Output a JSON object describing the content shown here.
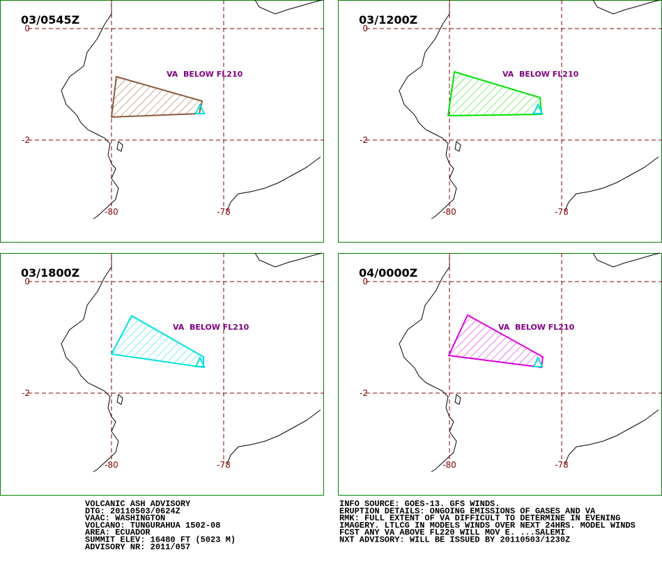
{
  "panels": [
    {
      "time": "03/0545Z",
      "va_label": "VA  BELOW FL210",
      "color": "#8b5a3c",
      "lat_labels": [
        "0",
        "-2"
      ],
      "lon_labels": [
        "-80",
        "-78"
      ]
    },
    {
      "time": "03/1200Z",
      "va_label": "VA  BELOW FL210",
      "color": "#00e000",
      "lat_labels": [
        "0",
        "-2"
      ],
      "lon_labels": [
        "-80",
        "-78"
      ]
    },
    {
      "time": "03/1800Z",
      "va_label": "VA  BELOW FL210",
      "color": "#00e0e0",
      "lat_labels": [
        "0",
        "-2"
      ],
      "lon_labels": [
        "-80",
        "-78"
      ]
    },
    {
      "time": "04/0000Z",
      "va_label": "VA  BELOW FL210",
      "color": "#e000e0",
      "lat_labels": [
        "0",
        "-2"
      ],
      "lon_labels": [
        "-80",
        "-78"
      ]
    }
  ],
  "advisory": {
    "left": [
      "VOLCANIC ASH ADVISORY",
      "DTG: 20110503/0624Z",
      "VAAC: WASHINGTON",
      "VOLCANO: TUNGURAHUA 1502-08",
      "AREA: ECUADOR",
      "SUMMIT ELEV: 16480 FT (5023 M)",
      "ADVISORY NR: 2011/057"
    ],
    "right": [
      "INFO SOURCE: GOES-13. GFS WINDS.",
      "ERUPTION DETAILS: ONGOING EMISSIONS OF GASES AND VA",
      "RMK: FULL EXTENT OF VA DIFFICULT TO DETERMINE IN EVENING",
      "IMAGERY. LTLCG IN MODELS WINDS OVER NEXT 24HRS. MODEL WINDS",
      "FCST ANY VA ABOVE FL220 WILL MOV E. ...SALEMI",
      "NXT ADVISORY: WILL BE ISSUED BY 20110503/1230Z"
    ]
  }
}
